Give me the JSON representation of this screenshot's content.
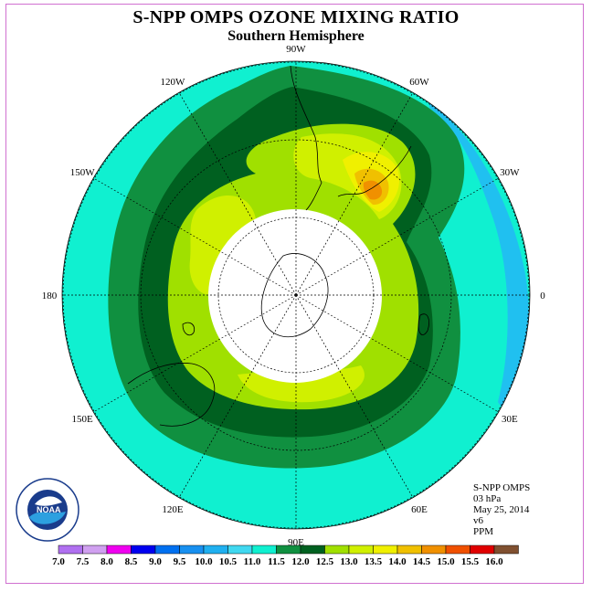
{
  "title": "S-NPP OMPS OZONE MIXING RATIO",
  "subtitle": "Southern Hemisphere",
  "longitude_labels": [
    {
      "text": "90W",
      "lon": -90
    },
    {
      "text": "60W",
      "lon": -60
    },
    {
      "text": "30W",
      "lon": -30
    },
    {
      "text": "0",
      "lon": 0
    },
    {
      "text": "30E",
      "lon": 30
    },
    {
      "text": "60E",
      "lon": 60
    },
    {
      "text": "90E",
      "lon": 90
    },
    {
      "text": "120E",
      "lon": 120
    },
    {
      "text": "150E",
      "lon": 150
    },
    {
      "text": "180",
      "lon": 180
    },
    {
      "text": "150W",
      "lon": -150
    },
    {
      "text": "120W",
      "lon": -120
    }
  ],
  "info": {
    "instrument": "S-NPP OMPS",
    "level": "03 hPa",
    "date": "May 25, 2014",
    "version": "v6",
    "units": "PPM"
  },
  "logo": {
    "text": "NOAA",
    "ring_text": "NATIONAL OCEANIC AND ATMOSPHERIC ADMINISTRATION",
    "ring_text_bottom": "U.S. DEPARTMENT OF COMMERCE"
  },
  "colorbar": {
    "ticks": [
      "7.0",
      "7.5",
      "8.0",
      "8.5",
      "9.0",
      "9.5",
      "10.0",
      "10.5",
      "11.0",
      "11.5",
      "12.0",
      "12.5",
      "13.0",
      "13.5",
      "14.0",
      "14.5",
      "15.0",
      "15.5",
      "16.0"
    ],
    "colors": [
      "#b070f0",
      "#d0a0f0",
      "#f000f0",
      "#0000f0",
      "#0070f0",
      "#1890f0",
      "#20b0f0",
      "#40d8f0",
      "#10f0d0",
      "#109040",
      "#006020",
      "#a0e000",
      "#d0f000",
      "#f0f000",
      "#f0c000",
      "#f09000",
      "#f05000",
      "#e00000",
      "#805030"
    ]
  },
  "field": {
    "polar_night": "no data south of ~60S",
    "max_value_region": "southern Atlantic near 50S 40W",
    "range_ppm": [
      10.5,
      14.5
    ]
  }
}
